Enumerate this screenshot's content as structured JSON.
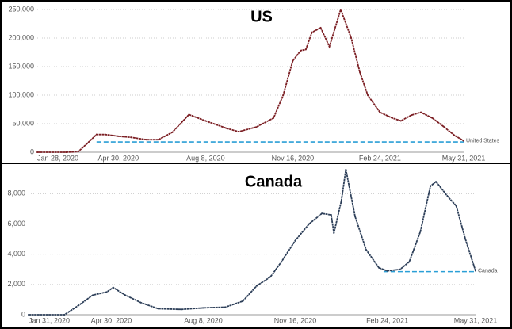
{
  "chart_data": [
    {
      "type": "line",
      "title": "US",
      "x": [
        "2020-01-28",
        "2020-03-01",
        "2020-03-15",
        "2020-03-25",
        "2020-04-05",
        "2020-04-15",
        "2020-04-30",
        "2020-05-15",
        "2020-06-01",
        "2020-06-15",
        "2020-07-01",
        "2020-07-20",
        "2020-08-08",
        "2020-09-01",
        "2020-09-15",
        "2020-10-05",
        "2020-10-25",
        "2020-11-05",
        "2020-11-16",
        "2020-11-25",
        "2020-12-01",
        "2020-12-08",
        "2020-12-18",
        "2020-12-28",
        "2021-01-10",
        "2021-01-22",
        "2021-02-01",
        "2021-02-10",
        "2021-02-24",
        "2021-03-10",
        "2021-03-20",
        "2021-04-01",
        "2021-04-12",
        "2021-04-25",
        "2021-05-08",
        "2021-05-20",
        "2021-05-31"
      ],
      "series": [
        {
          "name": "United States",
          "color": "#7b1e23",
          "values": [
            0,
            0,
            1000,
            15000,
            31000,
            31000,
            28000,
            26000,
            22000,
            22000,
            35000,
            66000,
            55000,
            42000,
            36000,
            44000,
            60000,
            100000,
            160000,
            178000,
            180000,
            210000,
            218000,
            185000,
            250000,
            200000,
            140000,
            100000,
            70000,
            60000,
            55000,
            65000,
            70000,
            60000,
            45000,
            30000,
            20000
          ]
        }
      ],
      "xlim": [
        "2020-01-28",
        "2021-05-31"
      ],
      "xticks": [
        {
          "value": "2020-01-28",
          "label": "Jan 28, 2020"
        },
        {
          "value": "2020-04-30",
          "label": "Apr 30, 2020"
        },
        {
          "value": "2020-08-08",
          "label": "Aug 8, 2020"
        },
        {
          "value": "2020-11-16",
          "label": "Nov 16, 2020"
        },
        {
          "value": "2021-02-24",
          "label": "Feb 24, 2021"
        },
        {
          "value": "2021-05-31",
          "label": "May 31, 2021"
        }
      ],
      "ylim": [
        0,
        250000
      ],
      "yticks": [
        0,
        {
          "value": 50000,
          "label": "50,000"
        },
        {
          "value": 100000,
          "label": "100,000"
        },
        {
          "value": 150000,
          "label": "150,000"
        },
        {
          "value": 200000,
          "label": "200,000"
        },
        {
          "value": 250000,
          "label": "250,000"
        }
      ],
      "grid": true,
      "reference_line": {
        "value": 18000,
        "from": "2020-04-05",
        "color": "#2a9fd6"
      }
    },
    {
      "type": "line",
      "title": "Canada",
      "x": [
        "2020-01-31",
        "2020-03-10",
        "2020-03-25",
        "2020-04-10",
        "2020-04-25",
        "2020-05-02",
        "2020-05-15",
        "2020-06-01",
        "2020-06-20",
        "2020-07-15",
        "2020-08-08",
        "2020-09-01",
        "2020-09-20",
        "2020-10-05",
        "2020-10-20",
        "2020-11-01",
        "2020-11-16",
        "2020-12-01",
        "2020-12-15",
        "2020-12-25",
        "2020-12-28",
        "2021-01-05",
        "2021-01-10",
        "2021-01-20",
        "2021-02-01",
        "2021-02-15",
        "2021-02-24",
        "2021-03-10",
        "2021-03-20",
        "2021-04-01",
        "2021-04-12",
        "2021-04-18",
        "2021-05-01",
        "2021-05-10",
        "2021-05-20",
        "2021-05-31"
      ],
      "series": [
        {
          "name": "Canada",
          "color": "#2c3e58",
          "values": [
            0,
            0,
            600,
            1300,
            1500,
            1800,
            1300,
            800,
            400,
            350,
            450,
            500,
            900,
            1900,
            2500,
            3500,
            4900,
            6000,
            6700,
            6600,
            5400,
            7500,
            9600,
            6500,
            4300,
            3100,
            2900,
            3000,
            3500,
            5500,
            8500,
            8800,
            7800,
            7200,
            5000,
            2900
          ]
        }
      ],
      "xlim": [
        "2020-01-31",
        "2021-05-31"
      ],
      "xticks": [
        {
          "value": "2020-01-31",
          "label": "Jan 31, 2020"
        },
        {
          "value": "2020-04-30",
          "label": "Apr 30, 2020"
        },
        {
          "value": "2020-08-08",
          "label": "Aug 8, 2020"
        },
        {
          "value": "2020-11-16",
          "label": "Nov 16, 2020"
        },
        {
          "value": "2021-02-24",
          "label": "Feb 24, 2021"
        },
        {
          "value": "2021-05-31",
          "label": "May 31, 2021"
        }
      ],
      "ylim": [
        0,
        9800
      ],
      "yticks": [
        0,
        {
          "value": 2000,
          "label": "2,000"
        },
        {
          "value": 4000,
          "label": "4,000"
        },
        {
          "value": 6000,
          "label": "6,000"
        },
        {
          "value": 8000,
          "label": "8,000"
        }
      ],
      "grid": true,
      "reference_line": {
        "value": 2850,
        "from": "2021-02-20",
        "color": "#2a9fd6"
      }
    }
  ]
}
